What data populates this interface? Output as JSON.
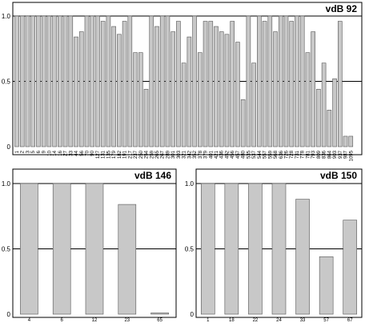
{
  "chart_data": [
    {
      "type": "bar",
      "title": "vdB 92",
      "ylim": [
        0,
        1.0
      ],
      "yticks": [
        "0",
        "0.5",
        "1.0"
      ],
      "reference_lines": [
        0.5,
        1.0
      ],
      "categories": [
        "1",
        "2",
        "3",
        "5",
        "6",
        "9",
        "10",
        "14",
        "16",
        "27",
        "33",
        "44",
        "56",
        "70",
        "90",
        "127",
        "131",
        "135",
        "179",
        "182",
        "191",
        "217",
        "237",
        "250",
        "254",
        "259",
        "265",
        "267",
        "289",
        "301",
        "303",
        "321",
        "342",
        "352",
        "378",
        "379",
        "401",
        "421",
        "436",
        "452",
        "456",
        "457",
        "480",
        "535",
        "537",
        "544",
        "557",
        "559",
        "568",
        "636",
        "726",
        "728",
        "731",
        "778",
        "781",
        "793",
        "809",
        "836",
        "864",
        "903",
        "937",
        "987",
        "1095"
      ],
      "values": [
        1.0,
        1.0,
        1.0,
        1.0,
        1.0,
        1.0,
        1.0,
        1.0,
        1.0,
        1.0,
        1.0,
        0.84,
        0.88,
        1.0,
        1.0,
        1.0,
        0.96,
        1.0,
        0.92,
        0.86,
        0.96,
        1.0,
        0.72,
        0.72,
        0.44,
        1.0,
        0.92,
        1.0,
        1.0,
        0.88,
        0.96,
        0.64,
        0.84,
        1.0,
        0.72,
        0.96,
        0.96,
        0.92,
        0.88,
        0.86,
        0.96,
        0.8,
        0.36,
        1.0,
        0.64,
        1.0,
        0.96,
        1.0,
        0.88,
        1.0,
        1.0,
        0.96,
        1.0,
        1.0,
        0.72,
        0.88,
        0.44,
        0.64,
        0.28,
        0.52,
        0.96,
        0.08,
        0.08
      ]
    },
    {
      "type": "bar",
      "title": "vdB 146",
      "ylim": [
        0,
        1.0
      ],
      "yticks": [
        "0",
        "0.5",
        "1.0"
      ],
      "reference_lines": [
        0.5,
        1.0
      ],
      "categories": [
        "4",
        "6",
        "12",
        "23",
        "65"
      ],
      "values": [
        1.0,
        1.0,
        1.0,
        0.84,
        0.01
      ]
    },
    {
      "type": "bar",
      "title": "vdB 150",
      "ylim": [
        0,
        1.0
      ],
      "yticks": [
        "0",
        "0.5",
        "1.0"
      ],
      "reference_lines": [
        0.5,
        1.0
      ],
      "categories": [
        "1",
        "18",
        "22",
        "24",
        "33",
        "57",
        "67"
      ],
      "values": [
        1.0,
        1.0,
        1.0,
        1.0,
        0.88,
        0.44,
        0.72
      ]
    }
  ]
}
